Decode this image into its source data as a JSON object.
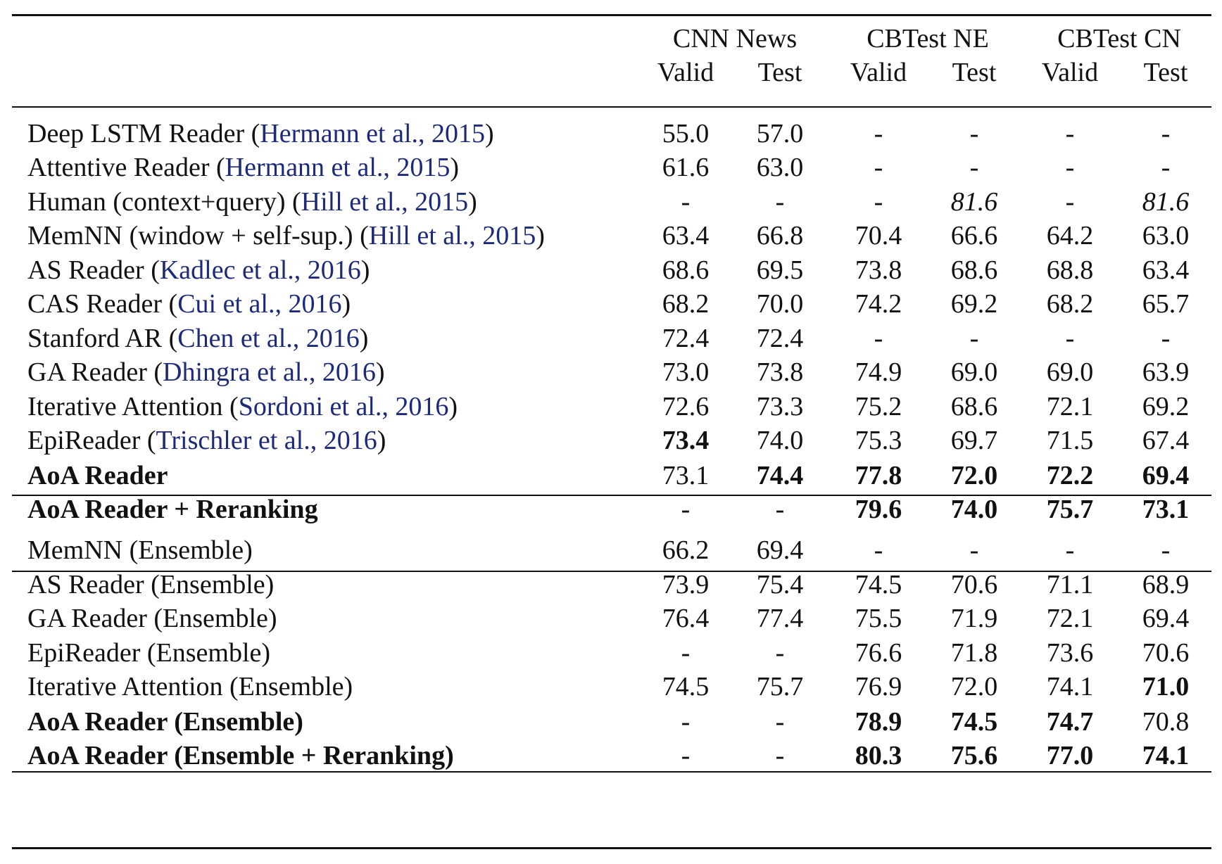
{
  "table": {
    "group_headers": [
      "CNN News",
      "CBTest NE",
      "CBTest CN"
    ],
    "sub_headers": [
      "Valid",
      "Test",
      "Valid",
      "Test",
      "Valid",
      "Test"
    ],
    "rows": [
      {
        "model": "Deep LSTM Reader",
        "cite": "Hermann et al., 2015",
        "values": [
          "55.0",
          "57.0",
          "-",
          "-",
          "-",
          "-"
        ]
      },
      {
        "model": "Attentive Reader",
        "cite": "Hermann et al., 2015",
        "values": [
          "61.6",
          "63.0",
          "-",
          "-",
          "-",
          "-"
        ]
      },
      {
        "model": "Human (context+query)",
        "cite": "Hill et al., 2015",
        "values": [
          "-",
          "-",
          "-",
          "81.6",
          "-",
          "81.6"
        ],
        "italic": [
          3,
          5
        ]
      },
      {
        "model": "MemNN (window + self-sup.)",
        "cite": "Hill et al., 2015",
        "values": [
          "63.4",
          "66.8",
          "70.4",
          "66.6",
          "64.2",
          "63.0"
        ]
      },
      {
        "model": "AS Reader",
        "cite": "Kadlec et al., 2016",
        "values": [
          "68.6",
          "69.5",
          "73.8",
          "68.6",
          "68.8",
          "63.4"
        ]
      },
      {
        "model": "CAS Reader",
        "cite": "Cui et al., 2016",
        "values": [
          "68.2",
          "70.0",
          "74.2",
          "69.2",
          "68.2",
          "65.7"
        ]
      },
      {
        "model": "Stanford AR",
        "cite": "Chen et al., 2016",
        "values": [
          "72.4",
          "72.4",
          "-",
          "-",
          "-",
          "-"
        ]
      },
      {
        "model": "GA Reader",
        "cite": "Dhingra et al., 2016",
        "values": [
          "73.0",
          "73.8",
          "74.9",
          "69.0",
          "69.0",
          "63.9"
        ]
      },
      {
        "model": "Iterative Attention",
        "cite": "Sordoni et al., 2016",
        "values": [
          "72.6",
          "73.3",
          "75.2",
          "68.6",
          "72.1",
          "69.2"
        ]
      },
      {
        "model": "EpiReader",
        "cite": "Trischler et al., 2016",
        "values": [
          "73.4",
          "74.0",
          "75.3",
          "69.7",
          "71.5",
          "67.4"
        ],
        "bold": [
          0
        ]
      },
      {
        "model": "AoA Reader",
        "model_bold": true,
        "values": [
          "73.1",
          "74.4",
          "77.8",
          "72.0",
          "72.2",
          "69.4"
        ],
        "bold": [
          1,
          2,
          3,
          4,
          5
        ]
      },
      {
        "model": "AoA Reader + Reranking",
        "model_bold": true,
        "values": [
          "-",
          "-",
          "79.6",
          "74.0",
          "75.7",
          "73.1"
        ],
        "bold": [
          2,
          3,
          4,
          5
        ]
      },
      {
        "model": "MemNN (Ensemble)",
        "values": [
          "66.2",
          "69.4",
          "-",
          "-",
          "-",
          "-"
        ]
      },
      {
        "model": "AS Reader (Ensemble)",
        "values": [
          "73.9",
          "75.4",
          "74.5",
          "70.6",
          "71.1",
          "68.9"
        ]
      },
      {
        "model": "GA Reader (Ensemble)",
        "values": [
          "76.4",
          "77.4",
          "75.5",
          "71.9",
          "72.1",
          "69.4"
        ]
      },
      {
        "model": "EpiReader (Ensemble)",
        "values": [
          "-",
          "-",
          "76.6",
          "71.8",
          "73.6",
          "70.6"
        ]
      },
      {
        "model": "Iterative Attention (Ensemble)",
        "values": [
          "74.5",
          "75.7",
          "76.9",
          "72.0",
          "74.1",
          "71.0"
        ],
        "bold": [
          5
        ]
      },
      {
        "model": "AoA Reader (Ensemble)",
        "model_bold": true,
        "values": [
          "-",
          "-",
          "78.9",
          "74.5",
          "74.7",
          "70.8"
        ],
        "bold": [
          2,
          3,
          4
        ]
      },
      {
        "model": "AoA Reader (Ensemble + Reranking)",
        "model_bold": true,
        "values": [
          "-",
          "-",
          "80.3",
          "75.6",
          "77.0",
          "74.1"
        ],
        "bold": [
          2,
          3,
          4,
          5
        ]
      }
    ]
  }
}
